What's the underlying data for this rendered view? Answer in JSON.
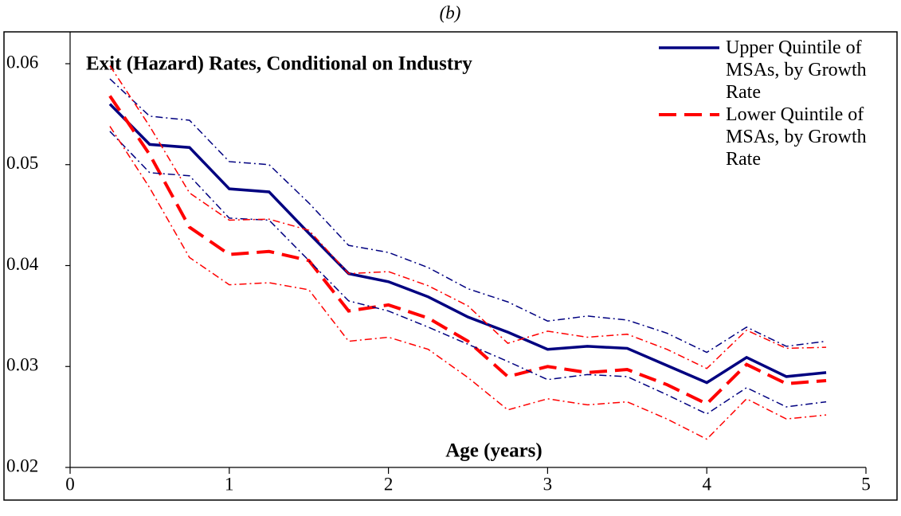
{
  "chart_data": {
    "type": "line",
    "subtitle": "(b)",
    "title": "Exit (Hazard) Rates, Conditional on Industry",
    "x_label": "Age (years)",
    "x": [
      0.25,
      0.5,
      0.75,
      1,
      1.25,
      1.5,
      1.75,
      2,
      2.25,
      2.5,
      2.75,
      3,
      3.25,
      3.5,
      3.75,
      4,
      4.25,
      4.5,
      4.75
    ],
    "series": [
      {
        "name": "Upper Quintile of MSAs, by Growth Rate",
        "color": "#000080",
        "style": "solid",
        "values": [
          0.056,
          0.052,
          0.0517,
          0.0476,
          0.0473,
          0.0432,
          0.0392,
          0.0384,
          0.0369,
          0.0349,
          0.0334,
          0.0317,
          0.032,
          0.0318,
          0.0301,
          0.0284,
          0.0309,
          0.029,
          0.0294
        ]
      },
      {
        "name": "Lower Quintile of MSAs, by Growth Rate",
        "color": "#ff0000",
        "style": "dashed",
        "values": [
          0.0568,
          0.051,
          0.0438,
          0.0411,
          0.0414,
          0.0405,
          0.0355,
          0.0361,
          0.0348,
          0.0325,
          0.029,
          0.03,
          0.0294,
          0.0297,
          0.0282,
          0.0263,
          0.0302,
          0.0283,
          0.0286
        ]
      },
      {
        "color": "#000080",
        "style": "dashdot",
        "values": [
          0.0585,
          0.0548,
          0.0544,
          0.0503,
          0.05,
          0.0462,
          0.042,
          0.0413,
          0.0398,
          0.0377,
          0.0364,
          0.0345,
          0.035,
          0.0346,
          0.0333,
          0.0314,
          0.0339,
          0.032,
          0.0325
        ]
      },
      {
        "color": "#000080",
        "style": "dashdot",
        "values": [
          0.0533,
          0.0492,
          0.0489,
          0.0447,
          0.0445,
          0.0405,
          0.0365,
          0.0355,
          0.0339,
          0.0322,
          0.0305,
          0.0287,
          0.0292,
          0.029,
          0.0272,
          0.0253,
          0.0279,
          0.026,
          0.0265
        ]
      },
      {
        "color": "#ff0000",
        "style": "dashdot",
        "values": [
          0.0598,
          0.0538,
          0.0472,
          0.0445,
          0.0446,
          0.0435,
          0.0392,
          0.0394,
          0.038,
          0.036,
          0.0323,
          0.0335,
          0.0329,
          0.0332,
          0.0317,
          0.0298,
          0.0336,
          0.0318,
          0.0319
        ]
      },
      {
        "color": "#ff0000",
        "style": "dashdot",
        "values": [
          0.0538,
          0.0477,
          0.0408,
          0.0381,
          0.0383,
          0.0376,
          0.0325,
          0.0329,
          0.0317,
          0.0289,
          0.0257,
          0.0268,
          0.0262,
          0.0265,
          0.0248,
          0.0228,
          0.0268,
          0.0248,
          0.0252
        ]
      }
    ],
    "xlim": [
      0,
      5
    ],
    "xticks": [
      0,
      1,
      2,
      3,
      4,
      5
    ],
    "ylim": [
      0.02,
      0.06
    ],
    "yticks": [
      0.02,
      0.03,
      0.04,
      0.05,
      0.06
    ],
    "legend": "top-right"
  }
}
